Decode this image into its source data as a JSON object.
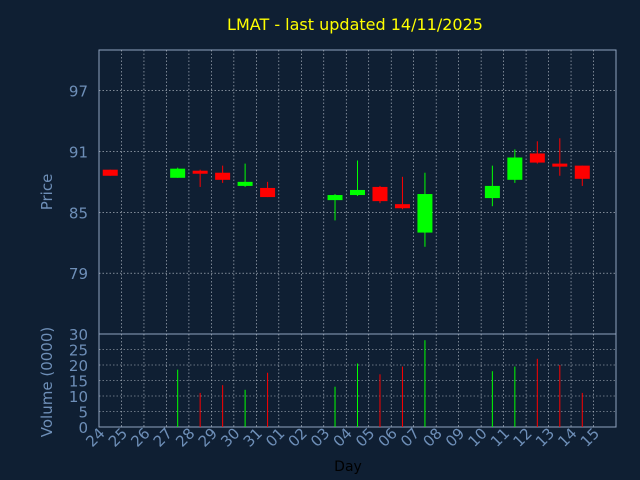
{
  "chart_data": [
    {
      "type": "candlestick",
      "title": "LMAT - last updated 14/11/2025",
      "xlabel": "",
      "ylabel": "Price",
      "ylim": [
        73,
        101
      ],
      "yticks": [
        79,
        85,
        91,
        97
      ],
      "grid": true,
      "x": [
        "24",
        "25",
        "26",
        "27",
        "28",
        "29",
        "30",
        "31",
        "01",
        "02",
        "03",
        "04",
        "05",
        "06",
        "07",
        "08",
        "09",
        "10",
        "11",
        "12",
        "13",
        "14",
        "15"
      ],
      "candles": [
        {
          "day": "24",
          "open": 89.2,
          "close": 88.6,
          "high": 89.2,
          "low": 88.6
        },
        {
          "day": "27",
          "open": 88.4,
          "close": 89.3,
          "high": 89.4,
          "low": 88.4
        },
        {
          "day": "28",
          "open": 89.1,
          "close": 88.8,
          "high": 89.2,
          "low": 87.5
        },
        {
          "day": "29",
          "open": 88.9,
          "close": 88.2,
          "high": 89.6,
          "low": 87.9
        },
        {
          "day": "30",
          "open": 87.6,
          "close": 88.0,
          "high": 89.8,
          "low": 87.5
        },
        {
          "day": "31",
          "open": 87.4,
          "close": 86.5,
          "high": 88.0,
          "low": 86.5
        },
        {
          "day": "03",
          "open": 86.2,
          "close": 86.7,
          "high": 86.8,
          "low": 84.2
        },
        {
          "day": "04",
          "open": 86.7,
          "close": 87.2,
          "high": 90.1,
          "low": 86.6
        },
        {
          "day": "05",
          "open": 87.5,
          "close": 86.1,
          "high": 87.6,
          "low": 85.9
        },
        {
          "day": "06",
          "open": 85.8,
          "close": 85.4,
          "high": 88.5,
          "low": 85.3
        },
        {
          "day": "07",
          "open": 83.0,
          "close": 86.8,
          "high": 88.9,
          "low": 81.6
        },
        {
          "day": "10",
          "open": 86.4,
          "close": 87.6,
          "high": 89.6,
          "low": 85.6
        },
        {
          "day": "11",
          "open": 88.2,
          "close": 90.4,
          "high": 91.2,
          "low": 87.9
        },
        {
          "day": "12",
          "open": 90.8,
          "close": 89.9,
          "high": 92.0,
          "low": 89.8
        },
        {
          "day": "13",
          "open": 89.8,
          "close": 89.5,
          "high": 92.3,
          "low": 88.6
        },
        {
          "day": "14",
          "open": 89.6,
          "close": 88.3,
          "high": 89.6,
          "low": 87.6
        }
      ],
      "colors": {
        "up": "#00ff00",
        "down": "#ff0000",
        "title": "#ffff00",
        "text": "#6e8fb8"
      }
    },
    {
      "type": "bar",
      "xlabel": "Day",
      "ylabel": "Volume (0000)",
      "ylim": [
        0,
        30
      ],
      "yticks": [
        0,
        5,
        10,
        15,
        20,
        25,
        30
      ],
      "grid": true,
      "categories": [
        "27",
        "28",
        "29",
        "30",
        "31",
        "03",
        "04",
        "05",
        "06",
        "07",
        "10",
        "11",
        "12",
        "13",
        "14"
      ],
      "values": [
        18.5,
        11.0,
        13.5,
        12.0,
        17.5,
        13.0,
        20.5,
        17.0,
        19.5,
        28.0,
        18.0,
        19.5,
        22.0,
        20.0,
        11.0
      ],
      "directions": [
        "up",
        "down",
        "down",
        "up",
        "down",
        "up",
        "up",
        "down",
        "down",
        "up",
        "up",
        "up",
        "down",
        "down",
        "down"
      ]
    }
  ]
}
